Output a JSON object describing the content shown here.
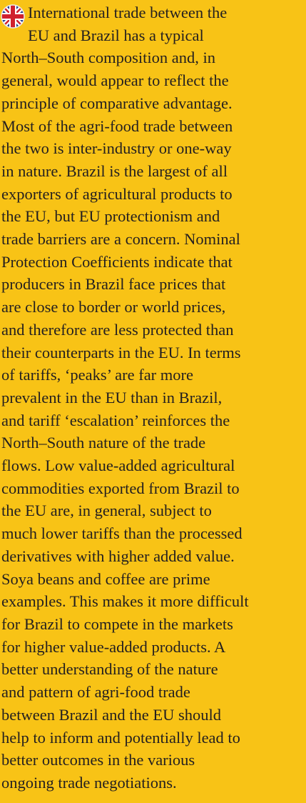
{
  "paragraph": {
    "lines": [
      "International trade between the",
      "EU and Brazil has a typical",
      "North–South composition and, in",
      "general, would appear to reflect the",
      "principle of comparative advantage.",
      "Most of the agri-food trade between",
      "the two is inter-industry or one-way",
      "in nature. Brazil is the largest of all",
      "exporters of agricultural products to",
      "the EU, but EU protectionism and",
      "trade barriers are a concern. Nominal",
      "Protection Coefficients indicate that",
      "producers in Brazil face prices that",
      "are close to border or world prices,",
      "and therefore are less protected than",
      "their counterparts in the EU. In terms",
      "of tariffs, ‘peaks’ are far more",
      "prevalent in the EU than in Brazil,",
      "and tariff ‘escalation’ reinforces the",
      "North–South nature of the trade",
      "flows. Low value-added agricultural",
      "commodities exported from Brazil to",
      "the EU are, in general, subject to",
      "much lower tariffs than the processed",
      "derivatives with higher added value.",
      "Soya beans and coffee are prime",
      "examples. This makes it more difficult",
      "for Brazil to compete in the markets",
      "for higher value-added products. A",
      "better understanding of the nature",
      "and pattern of agri-food trade",
      "between Brazil and the EU should",
      "help to inform and potentially lead to",
      "better outcomes in the various",
      "ongoing trade negotiations."
    ]
  }
}
